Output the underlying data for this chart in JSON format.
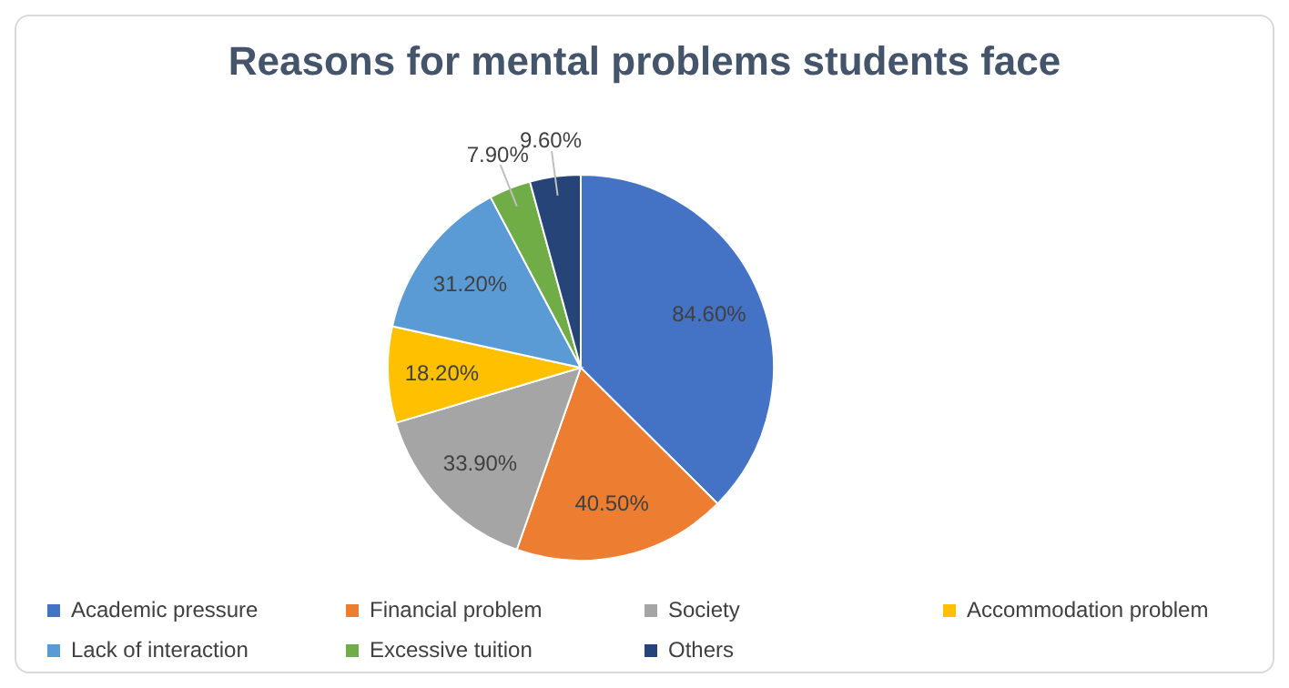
{
  "chart_data": {
    "type": "pie",
    "title": "Reasons for mental problems students face",
    "categories": [
      "Academic pressure",
      "Financial problem",
      "Society",
      "Accommodation problem",
      "Lack of interaction",
      "Excessive tuition",
      "Others"
    ],
    "values": [
      84.6,
      40.5,
      33.9,
      18.2,
      31.2,
      7.9,
      9.6
    ],
    "value_labels": [
      "84.60%",
      "40.50%",
      "33.90%",
      "18.20%",
      "31.20%",
      "7.90%",
      "9.60%"
    ],
    "colors": [
      "#4472c4",
      "#ed7d31",
      "#a5a5a5",
      "#ffc000",
      "#5b9bd5",
      "#70ad47",
      "#264478"
    ],
    "legend": "bottom"
  }
}
